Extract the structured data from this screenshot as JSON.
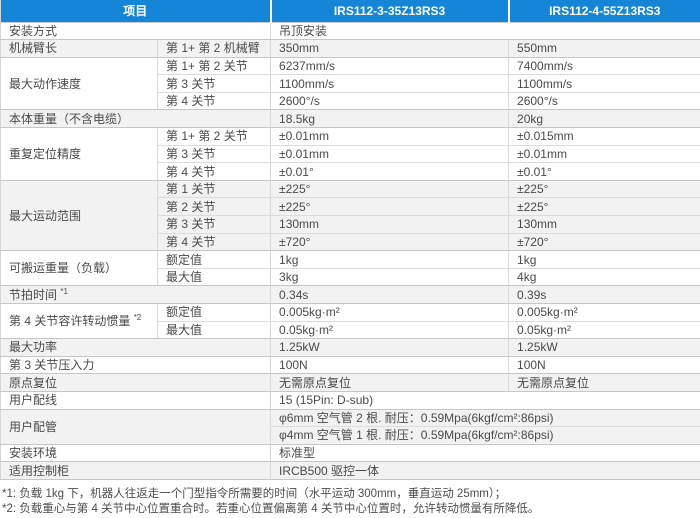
{
  "header": {
    "item_col": "项目",
    "model_a": "IRS112-3-35Z13RS3",
    "model_b": "IRS112-4-55Z13RS3"
  },
  "colors": {
    "header_bg": "#1485d7",
    "header_text": "#ffffff",
    "shaded_row_bg": "#f2f2f2",
    "body_text": "#4a4a4a"
  },
  "groups": [
    {
      "label": "安装方式",
      "merged_label": true,
      "shaded": false,
      "rows": [
        {
          "values": [
            "吊顶安装"
          ],
          "span": true
        }
      ]
    },
    {
      "label": "机械臂长",
      "merged_label": false,
      "shaded": true,
      "rows": [
        {
          "sub": "第 1+ 第 2 机械臂",
          "values": [
            "350mm",
            "550mm"
          ]
        }
      ]
    },
    {
      "label": "最大动作速度",
      "merged_label": false,
      "shaded": false,
      "rows": [
        {
          "sub": "第 1+ 第 2 关节",
          "values": [
            "6237mm/s",
            "7400mm/s"
          ]
        },
        {
          "sub": "第 3 关节",
          "values": [
            "1100mm/s",
            "1100mm/s"
          ]
        },
        {
          "sub": "第 4 关节",
          "values": [
            "2600°/s",
            "2600°/s"
          ]
        }
      ]
    },
    {
      "label": "本体重量（不含电缆）",
      "merged_label": true,
      "shaded": true,
      "rows": [
        {
          "values": [
            "18.5kg",
            "20kg"
          ]
        }
      ]
    },
    {
      "label": "重复定位精度",
      "merged_label": false,
      "shaded": false,
      "rows": [
        {
          "sub": "第 1+ 第 2 关节",
          "values": [
            "±0.01mm",
            "±0.015mm"
          ]
        },
        {
          "sub": "第 3 关节",
          "values": [
            "±0.01mm",
            "±0.01mm"
          ]
        },
        {
          "sub": "第 4 关节",
          "values": [
            "±0.01°",
            "±0.01°"
          ]
        }
      ]
    },
    {
      "label": "最大运动范围",
      "merged_label": false,
      "shaded": true,
      "rows": [
        {
          "sub": "第 1 关节",
          "values": [
            "±225°",
            "±225°"
          ]
        },
        {
          "sub": "第 2 关节",
          "values": [
            "±225°",
            "±225°"
          ]
        },
        {
          "sub": "第 3 关节",
          "values": [
            "130mm",
            "130mm"
          ]
        },
        {
          "sub": "第 4 关节",
          "values": [
            "±720°",
            "±720°"
          ]
        }
      ]
    },
    {
      "label": "可搬运重量（负载）",
      "merged_label": false,
      "shaded": false,
      "rows": [
        {
          "sub": "额定值",
          "values": [
            "1kg",
            "1kg"
          ]
        },
        {
          "sub": "最大值",
          "values": [
            "3kg",
            "4kg"
          ]
        }
      ]
    },
    {
      "label": "节拍时间",
      "label_sup": "*1",
      "merged_label": true,
      "shaded": true,
      "rows": [
        {
          "values": [
            "0.34s",
            "0.39s"
          ]
        }
      ]
    },
    {
      "label": "第 4 关节容许转动惯量",
      "label_sup": "*2",
      "merged_label": false,
      "shaded": false,
      "rows": [
        {
          "sub": "额定值",
          "values": [
            "0.005kg·m²",
            "0.005kg·m²"
          ]
        },
        {
          "sub": "最大值",
          "values": [
            "0.05kg·m²",
            "0.05kg·m²"
          ]
        }
      ]
    },
    {
      "label": "最大功率",
      "merged_label": true,
      "shaded": true,
      "rows": [
        {
          "values": [
            "1.25kW",
            "1.25kW"
          ]
        }
      ]
    },
    {
      "label": "第 3 关节压入力",
      "merged_label": true,
      "shaded": false,
      "rows": [
        {
          "values": [
            "100N",
            "100N"
          ]
        }
      ]
    },
    {
      "label": "原点复位",
      "merged_label": true,
      "shaded": true,
      "rows": [
        {
          "values": [
            "无需原点复位",
            "无需原点复位"
          ]
        }
      ]
    },
    {
      "label": "用户配线",
      "merged_label": true,
      "shaded": false,
      "rows": [
        {
          "values": [
            "15 (15Pin: D-sub)"
          ],
          "span": true
        }
      ]
    },
    {
      "label": "用户配管",
      "merged_label": true,
      "shaded": true,
      "rows": [
        {
          "values": [
            "φ6mm 空气管 2 根. 耐压：0.59Mpa(6kgf/cm²:86psi)"
          ],
          "span": true
        },
        {
          "values": [
            "φ4mm 空气管 1 根. 耐压：0.59Mpa(6kgf/cm²:86psi)"
          ],
          "span": true
        }
      ]
    },
    {
      "label": "安装环境",
      "merged_label": true,
      "shaded": false,
      "rows": [
        {
          "values": [
            "标准型"
          ],
          "span": true
        }
      ]
    },
    {
      "label": "适用控制柜",
      "merged_label": true,
      "shaded": true,
      "rows": [
        {
          "values": [
            "IRCB500 驱控一体"
          ],
          "span": true
        }
      ]
    }
  ],
  "footnotes": [
    "*1: 负载 1kg 下，机器人往返走一个门型指令所需要的时间（水平运动 300mm，垂直运动 25mm）；",
    "*2: 负载重心与第 4 关节中心位置重合时。若重心位置偏离第 4 关节中心位置时，允许转动惯量有所降低。"
  ]
}
